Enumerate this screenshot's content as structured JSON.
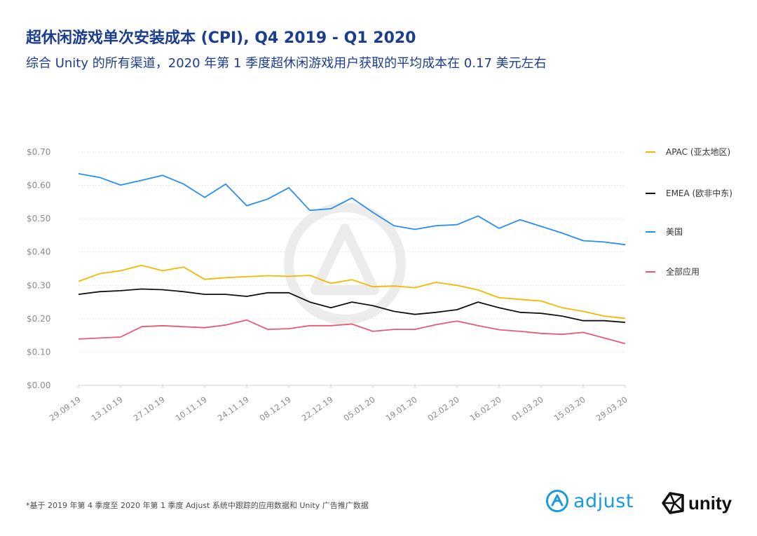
{
  "header": {
    "title": "超休闲游戏单次安装成本 (CPI), Q4 2019 - Q1 2020",
    "subtitle": "综合 Unity 的所有渠道，2020 年第 1 季度超休闲游戏用户获取的平均成本在 0.17 美元左右"
  },
  "footnote": "*基于 2019 年第 4 季度至 2020 年第 1 季度 Adjust 系统中跟踪的应用数据和 Unity 广告推广数据",
  "logos": {
    "adjust": "adjust",
    "unity": "unity"
  },
  "colors": {
    "title": "#1b3d8f",
    "adjust": "#1a9ae0"
  },
  "chart_data": {
    "type": "line",
    "ylim": [
      0,
      0.7
    ],
    "y_ticks": [
      "$0.00",
      "$0.10",
      "$0.20",
      "$0.30",
      "$0.40",
      "$0.50",
      "$0.60",
      "$0.70"
    ],
    "x_tick_labels": [
      "29.09.19",
      "13.10.19",
      "27.10.19",
      "10.11.19",
      "24.11.19",
      "08.12.19",
      "22.12.19",
      "05.01.20",
      "19.01.20",
      "02.02.20",
      "16.02.20",
      "01.03.20",
      "15.03.20",
      "29.03.20"
    ],
    "legend_position": "right",
    "grid": true,
    "series": [
      {
        "name": "APAC (亚太地区)",
        "color": "#f5b800",
        "values": [
          0.312,
          0.335,
          0.344,
          0.36,
          0.344,
          0.355,
          0.318,
          0.323,
          0.326,
          0.329,
          0.327,
          0.33,
          0.306,
          0.317,
          0.296,
          0.298,
          0.293,
          0.309,
          0.3,
          0.286,
          0.263,
          0.258,
          0.253,
          0.233,
          0.222,
          0.208,
          0.201
        ]
      },
      {
        "name": "EMEA (欧非中东)",
        "color": "#111111",
        "values": [
          0.273,
          0.281,
          0.284,
          0.289,
          0.287,
          0.281,
          0.273,
          0.273,
          0.267,
          0.278,
          0.278,
          0.25,
          0.233,
          0.25,
          0.239,
          0.222,
          0.213,
          0.219,
          0.227,
          0.25,
          0.233,
          0.219,
          0.216,
          0.208,
          0.194,
          0.194,
          0.189
        ]
      },
      {
        "name": "美国",
        "color": "#2a8df0",
        "values": [
          0.635,
          0.624,
          0.601,
          0.615,
          0.63,
          0.604,
          0.564,
          0.604,
          0.539,
          0.559,
          0.593,
          0.525,
          0.53,
          0.562,
          0.519,
          0.479,
          0.468,
          0.479,
          0.482,
          0.508,
          0.471,
          0.497,
          0.477,
          0.457,
          0.434,
          0.43,
          0.422
        ]
      },
      {
        "name": "全部应用",
        "color": "#e85a74",
        "values": [
          0.139,
          0.142,
          0.145,
          0.176,
          0.179,
          0.176,
          0.173,
          0.181,
          0.196,
          0.168,
          0.17,
          0.179,
          0.179,
          0.184,
          0.162,
          0.168,
          0.168,
          0.182,
          0.193,
          0.179,
          0.167,
          0.162,
          0.156,
          0.153,
          0.159,
          0.142,
          0.125
        ]
      }
    ]
  }
}
